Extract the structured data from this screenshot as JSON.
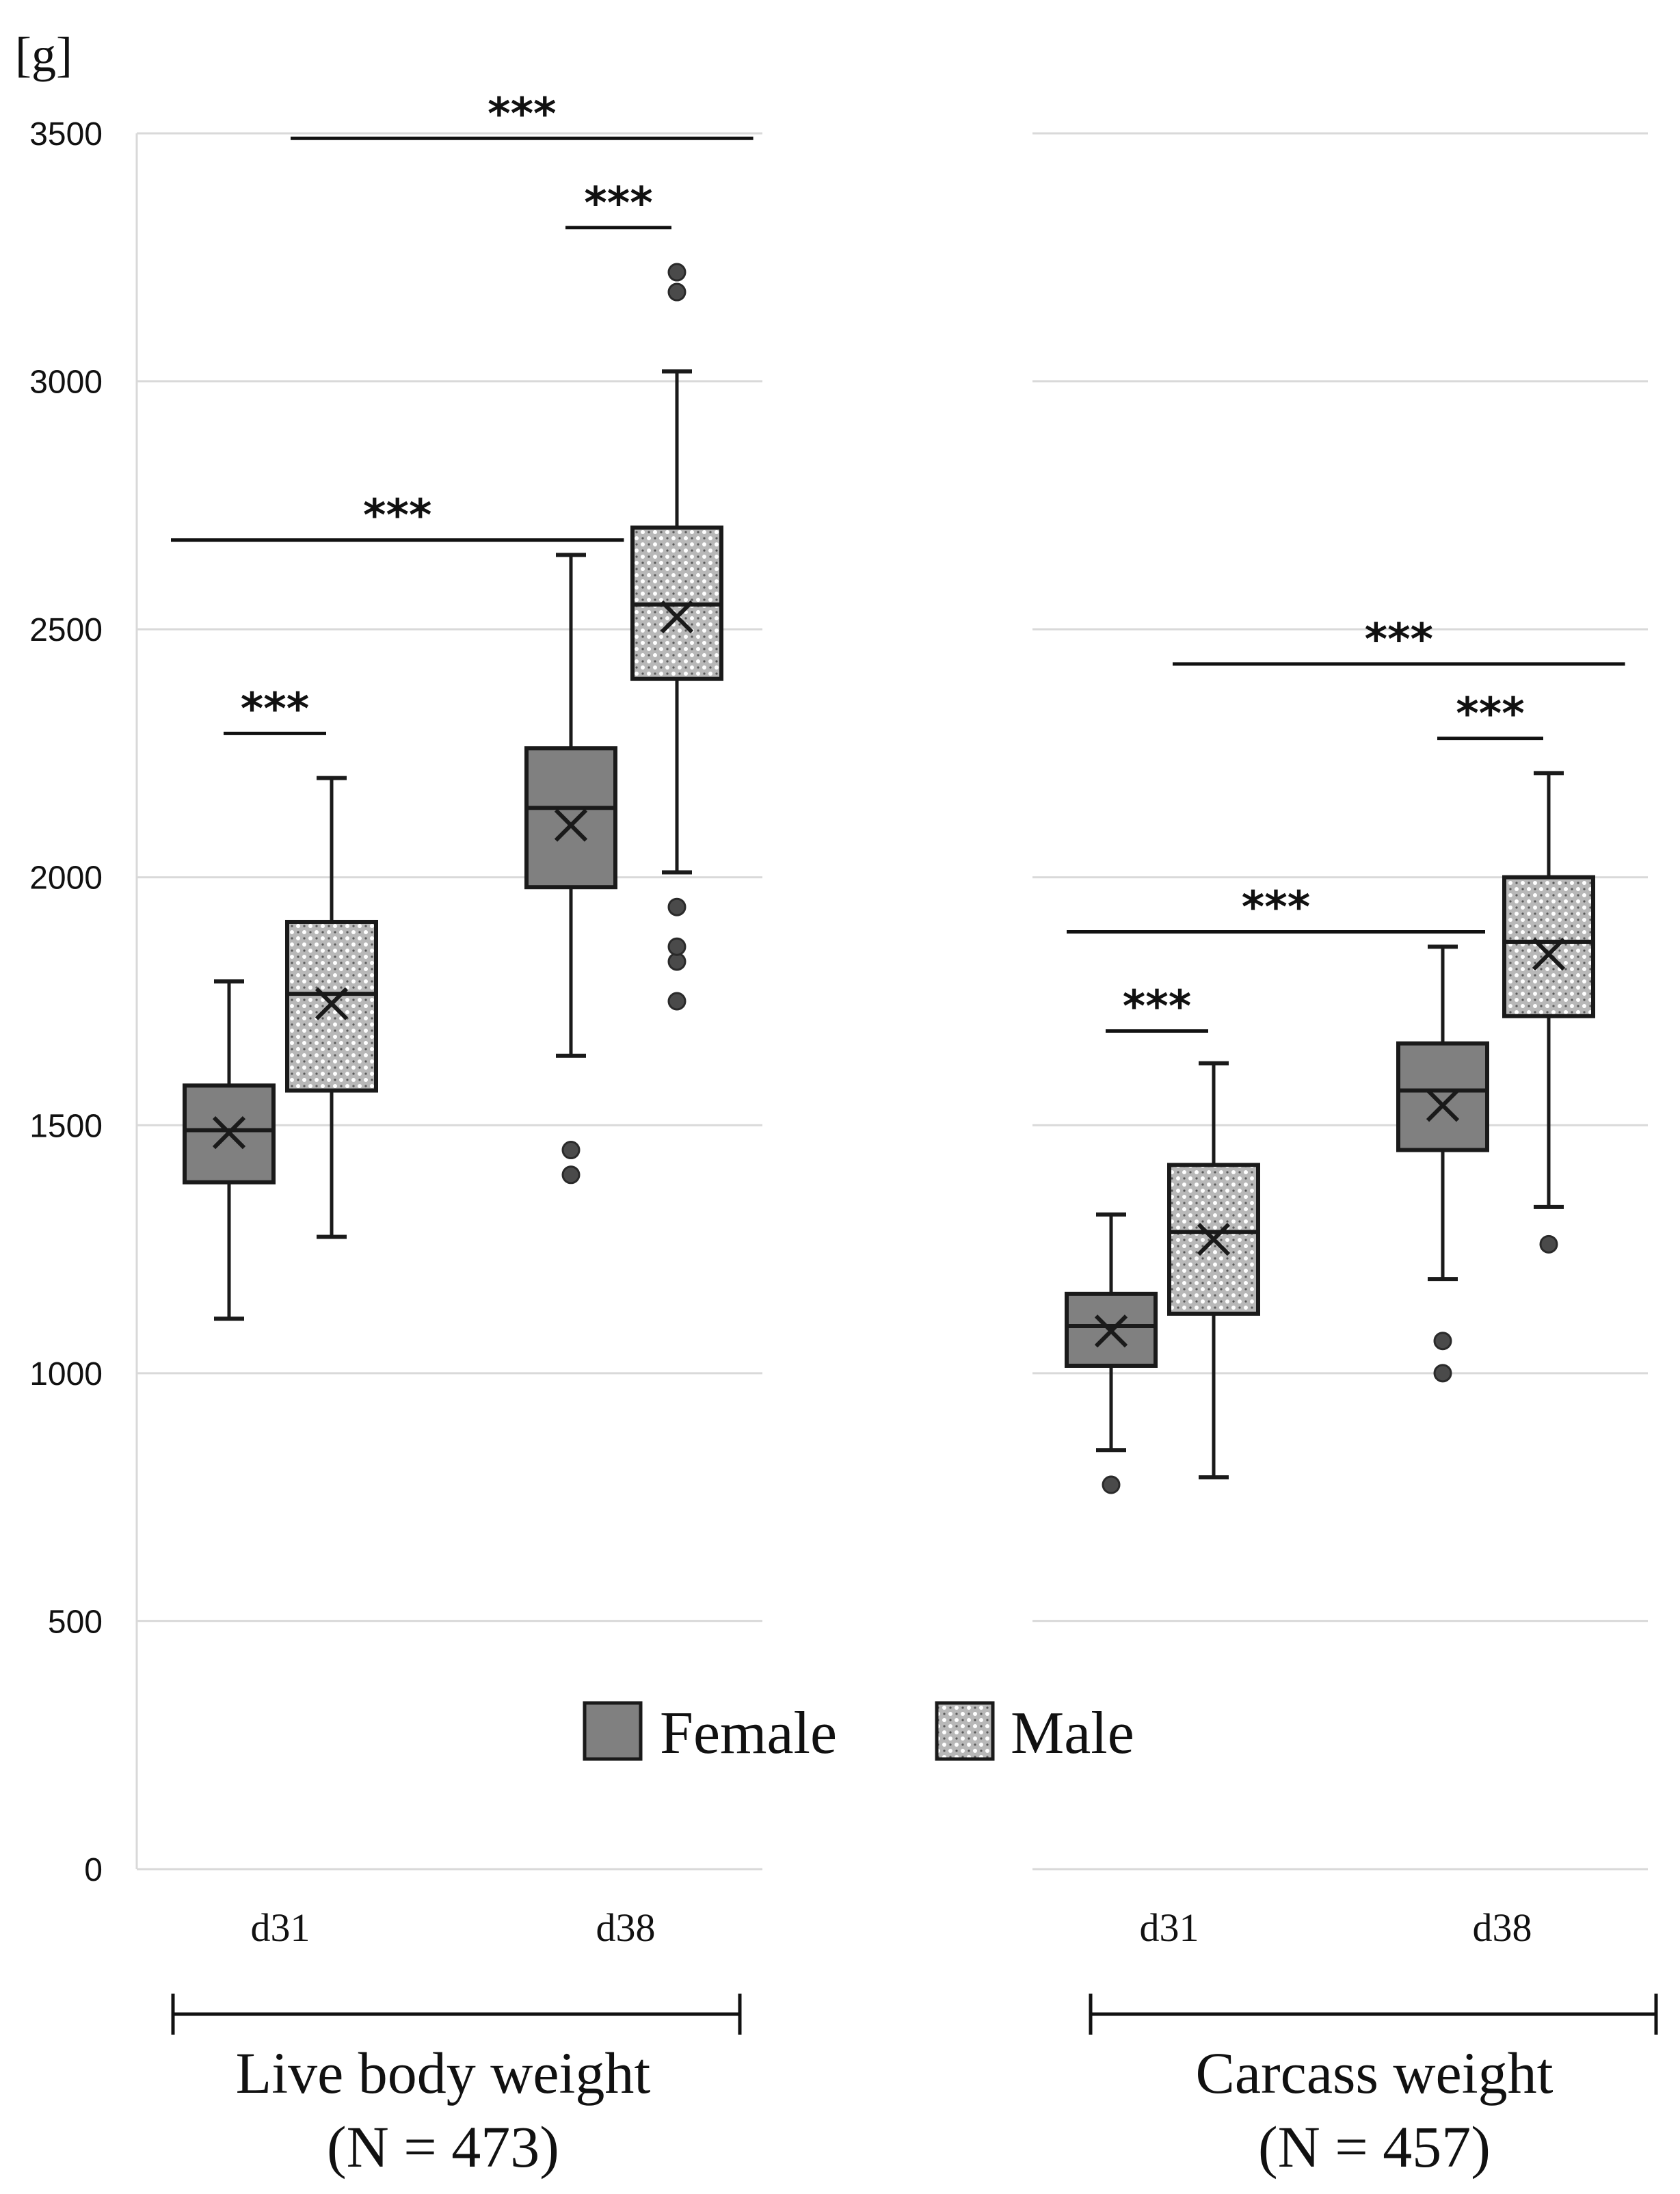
{
  "chart_data": {
    "type": "box",
    "unit_label": "[g]",
    "ylim": [
      0,
      3500
    ],
    "y_ticks": [
      "3500",
      "3000",
      "2500",
      "2000",
      "1500",
      "1000",
      "500",
      "0"
    ],
    "y_tick_values": [
      3500,
      3000,
      2500,
      2000,
      1500,
      1000,
      500,
      0
    ],
    "grid": true,
    "legend": {
      "position": "bottom-center",
      "female_label": "Female",
      "male_label": "Male"
    },
    "colors": {
      "female_fill": "#808080",
      "male_fill": "#b8b8b8",
      "line": "#1a1a1a",
      "grid": "#d9d9d9"
    },
    "significance_label": "***",
    "panels": [
      {
        "title": "Live body weight",
        "n_label": "(N = 473)",
        "categories": [
          "d31",
          "d38"
        ],
        "boxes": [
          {
            "category": "d31",
            "sex": "Female",
            "min": 1110,
            "q1": 1385,
            "median": 1490,
            "q3": 1580,
            "max": 1790,
            "mean": 1485,
            "outliers": []
          },
          {
            "category": "d31",
            "sex": "Male",
            "min": 1275,
            "q1": 1570,
            "median": 1765,
            "q3": 1910,
            "max": 2200,
            "mean": 1745,
            "outliers": []
          },
          {
            "category": "d38",
            "sex": "Female",
            "min": 1640,
            "q1": 1980,
            "median": 2140,
            "q3": 2260,
            "max": 2650,
            "mean": 2105,
            "outliers": [
              1400,
              1450
            ]
          },
          {
            "category": "d38",
            "sex": "Male",
            "min": 2010,
            "q1": 2400,
            "median": 2550,
            "q3": 2705,
            "max": 3020,
            "mean": 2525,
            "outliers": [
              1750,
              1830,
              1860,
              1940,
              3180,
              3220
            ]
          }
        ],
        "comparisons": [
          {
            "label": "***",
            "from": 0,
            "to": 1,
            "y": 2290
          },
          {
            "label": "***",
            "from": 2,
            "to": 3,
            "y": 3310
          },
          {
            "label": "***",
            "from": -1,
            "to": 2.5,
            "y": 2680
          },
          {
            "label": "***",
            "from": 0.6,
            "to": 3.6,
            "y": 3490
          }
        ]
      },
      {
        "title": "Carcass weight",
        "n_label": "(N = 457)",
        "categories": [
          "d31",
          "d38"
        ],
        "boxes": [
          {
            "category": "d31",
            "sex": "Female",
            "min": 845,
            "q1": 1015,
            "median": 1095,
            "q3": 1160,
            "max": 1320,
            "mean": 1085,
            "outliers": [
              775
            ]
          },
          {
            "category": "d31",
            "sex": "Male",
            "min": 790,
            "q1": 1120,
            "median": 1285,
            "q3": 1420,
            "max": 1625,
            "mean": 1270,
            "outliers": []
          },
          {
            "category": "d38",
            "sex": "Female",
            "min": 1190,
            "q1": 1450,
            "median": 1570,
            "q3": 1665,
            "max": 1860,
            "mean": 1540,
            "outliers": [
              1000,
              1065
            ]
          },
          {
            "category": "d38",
            "sex": "Male",
            "min": 1335,
            "q1": 1720,
            "median": 1870,
            "q3": 2000,
            "max": 2210,
            "mean": 1845,
            "outliers": [
              1260
            ]
          }
        ],
        "comparisons": [
          {
            "label": "***",
            "from": 0,
            "to": 1,
            "y": 1690
          },
          {
            "label": "***",
            "from": 2,
            "to": 3,
            "y": 2280
          },
          {
            "label": "***",
            "from": -1,
            "to": 2.4,
            "y": 1890
          },
          {
            "label": "***",
            "from": 0.6,
            "to": 3.6,
            "y": 2430
          }
        ]
      }
    ]
  }
}
